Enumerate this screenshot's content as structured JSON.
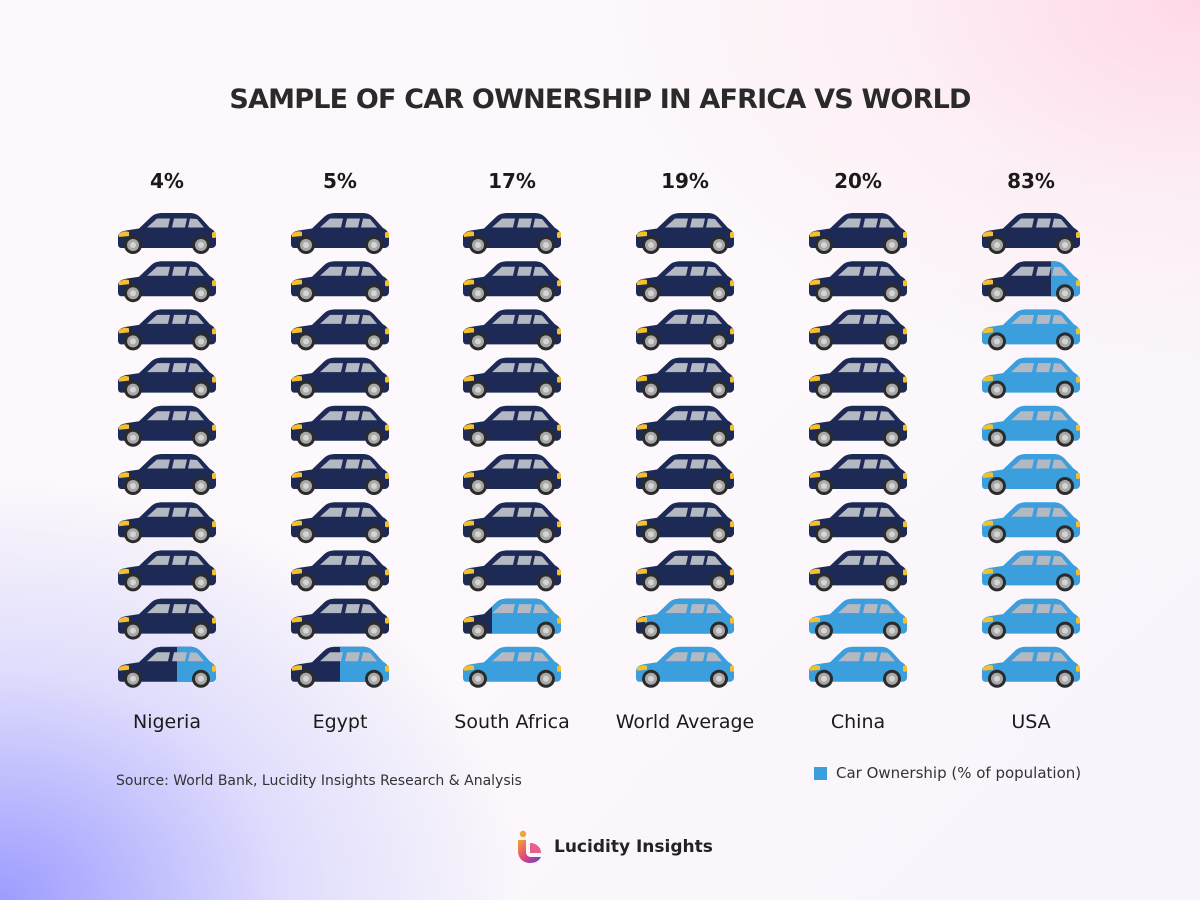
{
  "title": "SAMPLE OF CAR OWNERSHIP IN AFRICA VS WORLD",
  "source": "Source: World Bank, Lucidity Insights Research & Analysis",
  "brand": {
    "name": "Lucidity Insights",
    "logo_icon": "lucidity-logo-icon"
  },
  "colors": {
    "owned": "#3a9fdc",
    "not_owned": "#1c2a55",
    "headlight": "#f5c02a",
    "window": "#b3b8c2",
    "wheel": "#a8a8a8"
  },
  "chart_data": {
    "type": "pictograph",
    "icon": "car-icon",
    "icons_per_column": 10,
    "categories": [
      "Nigeria",
      "Egypt",
      "South Africa",
      "World Average",
      "China",
      "USA"
    ],
    "values": [
      4,
      5,
      17,
      19,
      20,
      83
    ],
    "value_labels": [
      "4%",
      "5%",
      "17%",
      "19%",
      "20%",
      "83%"
    ],
    "series": [
      {
        "name": "Car Ownership (% of population)",
        "values": [
          4,
          5,
          17,
          19,
          20,
          83
        ]
      }
    ],
    "legend": {
      "label": "Car Ownership (% of population)",
      "position": "bottom-right"
    }
  }
}
